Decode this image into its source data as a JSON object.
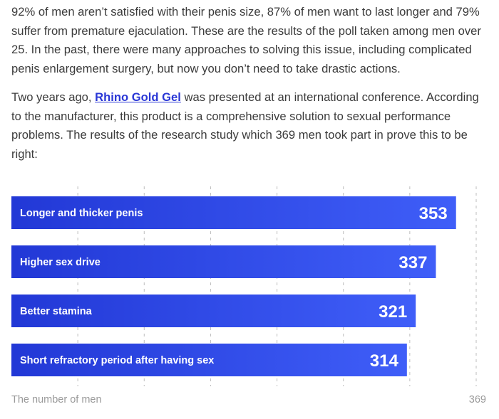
{
  "article": {
    "p1": "92% of men aren’t satisfied with their penis size, 87% of men want to last longer and 79% suffer from premature ejaculation. These are the results of the poll taken among men over 25. In the past, there were many approaches to solving this issue, including complicated penis enlargement surgery, but now you don’t need to take drastic actions.",
    "p2_before": "Two years ago, ",
    "p2_link": "Rhino Gold Gel",
    "p2_after": " was presented at an international conference. According to the manufacturer, this product is a comprehensive solution to sexual performance problems. The results of the research study which 369 men took part in prove this to be right:"
  },
  "chart_data": {
    "type": "bar",
    "orientation": "horizontal",
    "categories": [
      "Longer and thicker penis",
      "Higher sex drive",
      "Better stamina",
      "Short refractory period after having sex"
    ],
    "values": [
      353,
      337,
      321,
      314
    ],
    "xlabel": "The number of men",
    "xmax_label": "369",
    "xlim": [
      0,
      369
    ],
    "grid": true,
    "colors": {
      "bar_start": "#2238d6",
      "bar_end": "#3f5ef8",
      "text": "#ffffff",
      "grid": "#bdbdbd"
    }
  }
}
